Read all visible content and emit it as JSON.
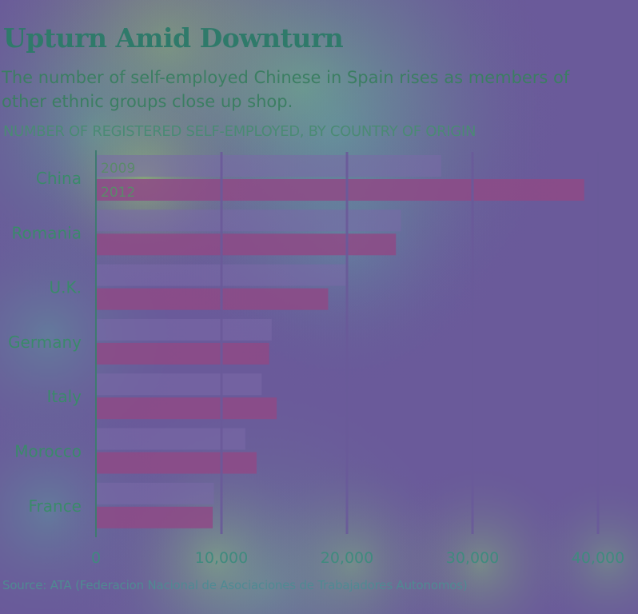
{
  "header": {
    "title": "Upturn Amid Downturn",
    "subtitle": "The number of self-employed Chinese in Spain rises as members of other ethnic groups close up shop.",
    "section_label": "NUMBER OF REGISTERED SELF-EMPLOYED, BY COUNTRY OF ORIGIN"
  },
  "footer": {
    "source": "Source: ATA (Federacion Nacional de Asociaciones de Trabajadores Autonomos)"
  },
  "chart_data": {
    "type": "bar",
    "orientation": "horizontal",
    "categories": [
      "China",
      "Romania",
      "U.K.",
      "Germany",
      "Italy",
      "Morocco",
      "France"
    ],
    "series": [
      {
        "name": "2009",
        "values": [
          27500,
          24300,
          19900,
          14000,
          13200,
          11900,
          9400
        ]
      },
      {
        "name": "2012",
        "values": [
          38900,
          23900,
          18500,
          13800,
          14400,
          12800,
          9300
        ]
      }
    ],
    "xlim": [
      0,
      40000
    ],
    "xticks": [
      0,
      10000,
      20000,
      30000,
      40000
    ],
    "xtick_labels": [
      "0",
      "10,000",
      "20,000",
      "30,000",
      "40,000"
    ],
    "grid": "vertical white separators at 10,000 intervals",
    "legend": "inline labels inside first category bars",
    "colors": {
      "bar_2009": "#7a6aa8",
      "bar_2012": "#8e4a86",
      "axis": "#3f7a70",
      "category_label": "#3a8a6a",
      "tick_label": "#3f8a7e"
    }
  }
}
